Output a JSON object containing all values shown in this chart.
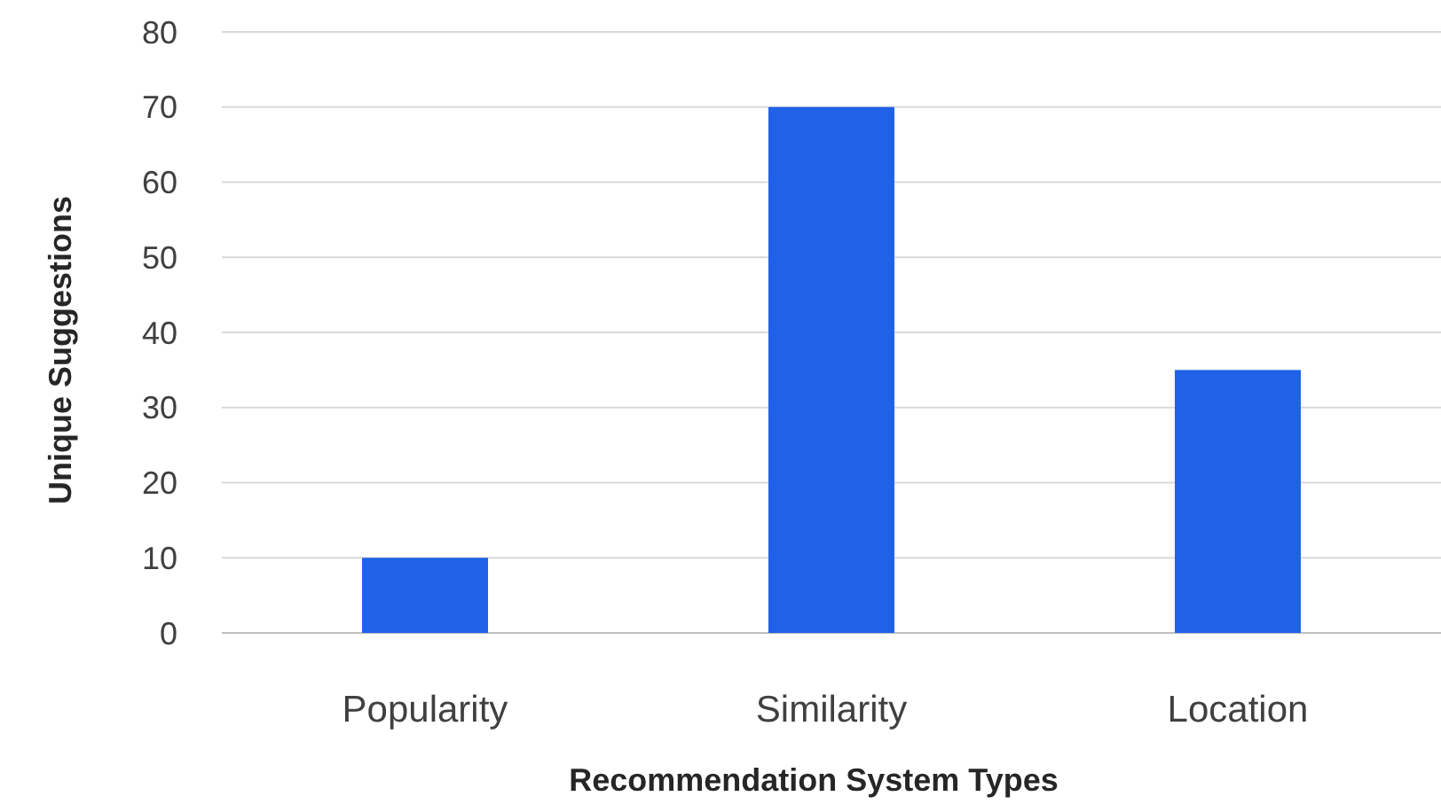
{
  "chart_data": {
    "type": "bar",
    "xlabel": "Recommendation System Types",
    "ylabel": "Unique Suggestions",
    "categories": [
      "Popularity",
      "Similarity",
      "Location"
    ],
    "values": [
      10,
      70,
      35
    ],
    "color": "#1f62e8",
    "ylim": [
      0,
      80
    ],
    "yticks": [
      0,
      10,
      20,
      30,
      40,
      50,
      60,
      70,
      80
    ],
    "grid": "y"
  }
}
